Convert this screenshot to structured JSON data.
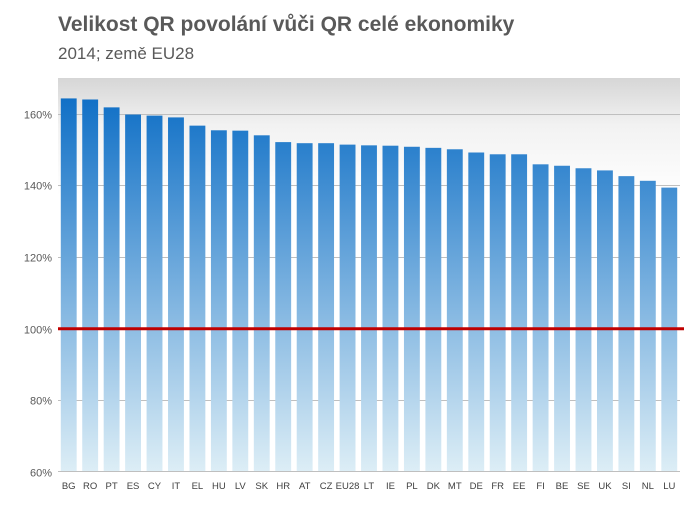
{
  "title": "Velikost QR povolání vůči QR celé ekonomiky",
  "subtitle": "2014; země EU28",
  "chart_data": {
    "type": "bar",
    "title": "Velikost QR povolání vůči QR celé ekonomiky",
    "subtitle": "2014; země EU28",
    "xlabel": "",
    "ylabel": "",
    "ylim": [
      60,
      170
    ],
    "yticks": [
      60,
      80,
      100,
      120,
      140,
      160
    ],
    "ytick_labels": [
      "60%",
      "80%",
      "100%",
      "120%",
      "140%",
      "160%"
    ],
    "grid": true,
    "reference_line": {
      "value": 100,
      "color": "#c00000"
    },
    "bar_color_top": "#0f6fc6",
    "bar_color_bottom": "#ddeef6",
    "categories": [
      "BG",
      "RO",
      "PT",
      "ES",
      "CY",
      "IT",
      "EL",
      "HU",
      "LV",
      "SK",
      "HR",
      "AT",
      "CZ",
      "EU28",
      "LT",
      "IE",
      "PL",
      "DK",
      "MT",
      "DE",
      "FR",
      "EE",
      "FI",
      "BE",
      "SE",
      "UK",
      "SI",
      "NL",
      "LU"
    ],
    "values": [
      164.3,
      164.0,
      161.8,
      159.8,
      159.5,
      159.0,
      156.7,
      155.4,
      155.3,
      154.0,
      152.1,
      151.8,
      151.8,
      151.4,
      151.2,
      151.1,
      150.8,
      150.5,
      150.1,
      149.2,
      148.7,
      148.7,
      145.9,
      145.5,
      144.8,
      144.2,
      142.6,
      141.3,
      139.4
    ]
  }
}
